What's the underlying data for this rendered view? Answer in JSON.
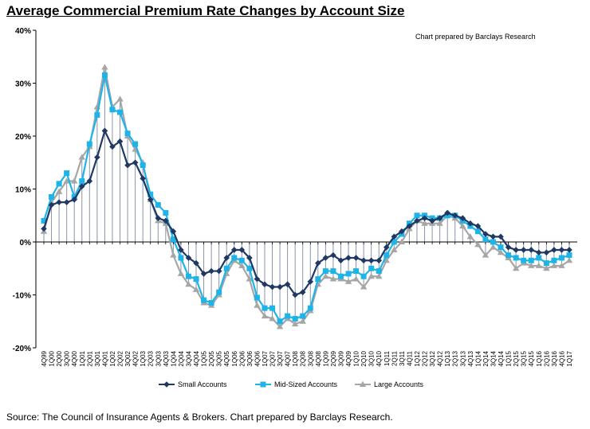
{
  "page": {
    "title": "Average Commercial Premium Rate Changes by Account Size",
    "source": "Source: The Council of Insurance Agents & Brokers. Chart prepared by Barclays Research."
  },
  "chart_data": {
    "type": "line",
    "title": "Average Commercial Premium Rate Changes by Account Size",
    "annotation": "Chart prepared by Barclays Research",
    "ylim": [
      -20,
      40
    ],
    "yticks": [
      "-20%",
      "-10%",
      "0%",
      "10%",
      "20%",
      "30%",
      "40%"
    ],
    "yticks_values": [
      -20,
      -10,
      0,
      10,
      20,
      30,
      40
    ],
    "legend_position": "bottom",
    "grid": false,
    "categories": [
      "4Q99",
      "1Q00",
      "2Q00",
      "3Q00",
      "4Q00",
      "1Q01",
      "2Q01",
      "3Q01",
      "4Q01",
      "1Q02",
      "2Q02",
      "3Q02",
      "4Q02",
      "1Q03",
      "2Q03",
      "3Q03",
      "4Q03",
      "1Q04",
      "2Q04",
      "3Q04",
      "4Q04",
      "1Q05",
      "2Q05",
      "3Q05",
      "4Q05",
      "1Q06",
      "2Q06",
      "3Q06",
      "4Q06",
      "1Q07",
      "2Q07",
      "3Q07",
      "4Q07",
      "1Q08",
      "2Q08",
      "3Q08",
      "4Q08",
      "1Q09",
      "2Q09",
      "3Q09",
      "4Q09",
      "1Q10",
      "2Q10",
      "3Q10",
      "4Q10",
      "1Q11",
      "2Q11",
      "3Q11",
      "4Q11",
      "1Q12",
      "2Q12",
      "3Q12",
      "4Q12",
      "1Q13",
      "2Q13",
      "3Q13",
      "4Q13",
      "1Q14",
      "2Q14",
      "3Q14",
      "4Q14",
      "1Q15",
      "2Q15",
      "3Q15",
      "4Q15",
      "1Q16",
      "2Q16",
      "3Q16",
      "4Q16",
      "1Q17"
    ],
    "x_tick_labels": [
      "4Q99",
      "1Q00",
      "2Q00",
      "3Q00",
      "4Q00",
      "1Q01",
      "2Q01",
      "3Q01",
      "4Q01",
      "1Q02",
      "2Q02",
      "3Q02",
      "4Q02",
      "1Q03",
      "2Q03",
      "3Q03",
      "4Q03",
      "1Q04",
      "2Q04",
      "3Q04",
      "4Q04",
      "1Q05",
      "2Q05",
      "3Q05",
      "4Q05",
      "1Q06",
      "2Q06",
      "3Q06",
      "4Q06",
      "1Q07",
      "2Q07",
      "3Q07",
      "4Q07",
      "1Q08",
      "2Q08",
      "3Q08",
      "4Q08",
      "1Q09",
      "2Q09",
      "3Q09",
      "4Q09",
      "1Q10",
      "2Q10",
      "3Q10",
      "4Q10",
      "1Q11",
      "2Q11",
      "3Q11",
      "4Q11",
      "1Q12",
      "2Q12",
      "3Q12",
      "4Q12",
      "1Q13",
      "2Q13",
      "3Q13",
      "4Q13",
      "1Q14",
      "2Q14",
      "3Q14",
      "4Q14",
      "1Q15",
      "2Q15",
      "3Q15",
      "4Q15",
      "1Q16",
      "2Q16",
      "3Q16",
      "4Q16",
      "1Q17"
    ],
    "series": [
      {
        "name": "Small Accounts",
        "color": "#1f3864",
        "marker": "diamond",
        "values": [
          2.5,
          7.0,
          7.5,
          7.5,
          8.0,
          10.5,
          11.5,
          16.0,
          21.0,
          18.0,
          19.0,
          14.5,
          15.0,
          12.0,
          8.0,
          4.5,
          4.0,
          2.0,
          -1.5,
          -3.0,
          -4.0,
          -6.0,
          -5.5,
          -5.5,
          -3.0,
          -1.5,
          -1.5,
          -3.0,
          -7.0,
          -8.0,
          -8.5,
          -8.5,
          -8.0,
          -10.0,
          -9.5,
          -7.5,
          -4.0,
          -3.0,
          -2.5,
          -3.5,
          -3.0,
          -3.0,
          -3.5,
          -3.5,
          -3.5,
          -1.0,
          1.0,
          2.0,
          3.0,
          4.0,
          4.5,
          4.0,
          4.5,
          5.5,
          5.0,
          4.5,
          3.5,
          3.0,
          1.5,
          1.0,
          1.0,
          -1.0,
          -1.5,
          -1.5,
          -1.5,
          -2.0,
          -2.0,
          -1.5,
          -1.5,
          -1.5
        ]
      },
      {
        "name": "Mid-Sized Accounts",
        "color": "#1fb4e8",
        "marker": "square",
        "values": [
          4.0,
          8.5,
          11.0,
          13.0,
          8.5,
          11.5,
          18.5,
          24.0,
          31.5,
          25.0,
          24.5,
          20.5,
          18.5,
          14.5,
          9.0,
          7.0,
          5.5,
          0.5,
          -3.0,
          -6.5,
          -7.0,
          -11.0,
          -11.5,
          -9.5,
          -5.0,
          -3.0,
          -3.5,
          -5.0,
          -10.5,
          -12.5,
          -12.5,
          -15.0,
          -14.0,
          -14.5,
          -14.0,
          -12.5,
          -7.0,
          -5.5,
          -5.5,
          -6.5,
          -6.0,
          -5.5,
          -6.5,
          -5.0,
          -5.5,
          -2.5,
          0.0,
          1.5,
          3.5,
          5.0,
          5.0,
          4.5,
          4.5,
          5.0,
          5.0,
          4.0,
          3.0,
          2.0,
          0.5,
          0.0,
          -1.0,
          -2.5,
          -3.0,
          -3.5,
          -3.5,
          -3.0,
          -4.0,
          -3.5,
          -3.0,
          -2.5
        ]
      },
      {
        "name": "Large Accounts",
        "color": "#a6a6a6",
        "marker": "triangle",
        "values": [
          2.0,
          7.5,
          9.5,
          11.5,
          11.5,
          16.0,
          18.0,
          25.5,
          33.0,
          25.5,
          27.0,
          20.0,
          17.5,
          15.0,
          8.0,
          4.0,
          3.5,
          -2.5,
          -6.0,
          -8.0,
          -9.0,
          -11.5,
          -12.0,
          -10.0,
          -6.0,
          -3.5,
          -4.5,
          -7.0,
          -12.0,
          -14.0,
          -14.5,
          -16.0,
          -14.5,
          -15.5,
          -15.0,
          -13.0,
          -8.0,
          -6.5,
          -7.0,
          -7.0,
          -7.5,
          -7.0,
          -8.5,
          -6.5,
          -6.5,
          -3.5,
          -1.5,
          0.0,
          2.5,
          4.0,
          3.5,
          3.5,
          3.5,
          5.0,
          4.5,
          3.0,
          1.0,
          -0.5,
          -2.5,
          -1.0,
          -2.0,
          -3.0,
          -5.0,
          -4.0,
          -4.5,
          -4.5,
          -5.0,
          -4.5,
          -4.5,
          -3.5
        ]
      }
    ]
  }
}
